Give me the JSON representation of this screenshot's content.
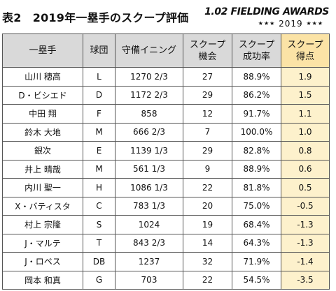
{
  "title": "表2　2019年一塁手のスクープ評価",
  "logo": {
    "main": "1.02 FIELDING AWARDS",
    "stars": "★★★",
    "year": "2019"
  },
  "columns": [
    "一塁手",
    "球団",
    "守備イニング",
    "スクープ\n機会",
    "スクープ\n成功率",
    "スクープ\n得点"
  ],
  "rows": [
    [
      "山川 穂高",
      "L",
      "1270 2/3",
      "27",
      "88.9%",
      "1.9"
    ],
    [
      "D・ビシエド",
      "D",
      "1172 2/3",
      "29",
      "86.2%",
      "1.5"
    ],
    [
      "中田 翔",
      "F",
      "858",
      "12",
      "91.7%",
      "1.1"
    ],
    [
      "鈴木 大地",
      "M",
      "666 2/3",
      "7",
      "100.0%",
      "1.0"
    ],
    [
      "銀次",
      "E",
      "1139 1/3",
      "29",
      "82.8%",
      "0.8"
    ],
    [
      "井上 晴哉",
      "M",
      "561 1/3",
      "9",
      "88.9%",
      "0.6"
    ],
    [
      "内川 聖一",
      "H",
      "1086 1/3",
      "22",
      "81.8%",
      "0.5"
    ],
    [
      "X・バティスタ",
      "C",
      "783 1/3",
      "20",
      "75.0%",
      "-0.5"
    ],
    [
      "村上 宗隆",
      "S",
      "1024",
      "19",
      "68.4%",
      "-1.3"
    ],
    [
      "J・マルテ",
      "T",
      "843 2/3",
      "14",
      "64.3%",
      "-1.3"
    ],
    [
      "J・ロペス",
      "DB",
      "1237",
      "32",
      "71.9%",
      "-1.4"
    ],
    [
      "岡本 和真",
      "G",
      "703",
      "22",
      "54.5%",
      "-3.5"
    ]
  ],
  "colors": {
    "header_bg": "#d9d9d9",
    "score_bg": "#fdf1cc",
    "score_header_bg": "#fbe3a6",
    "border": "#555555"
  }
}
